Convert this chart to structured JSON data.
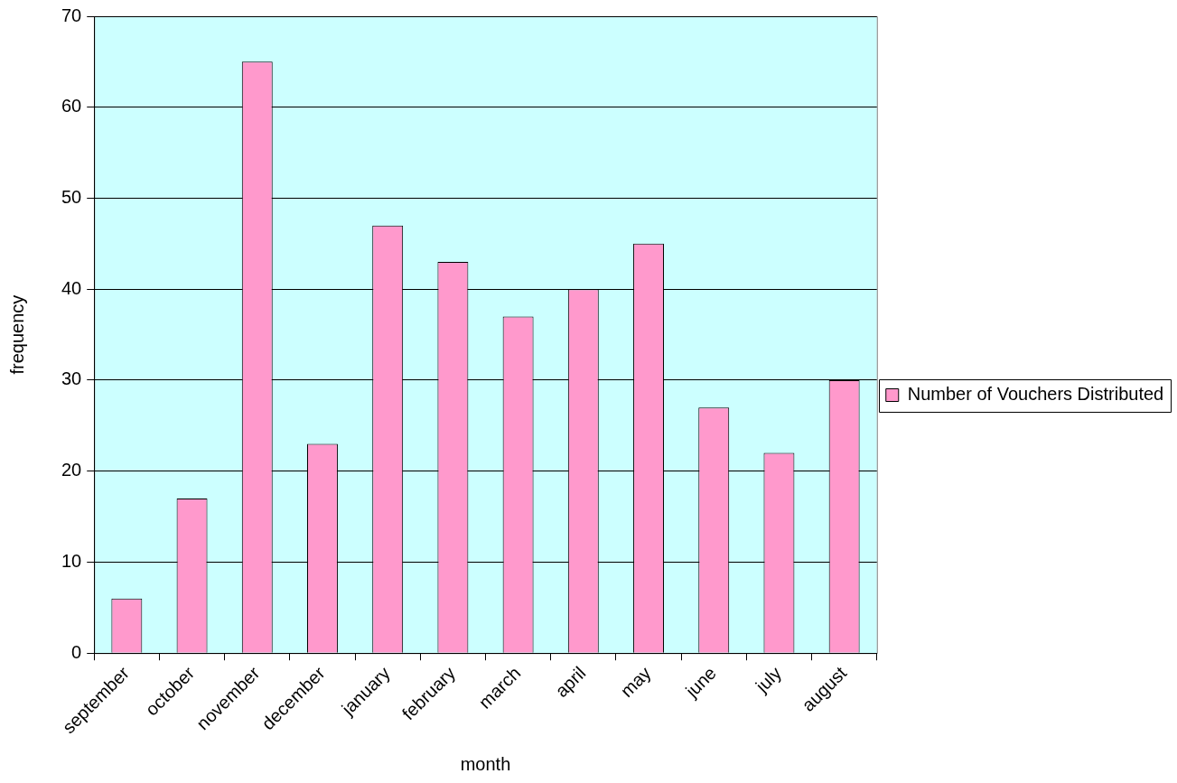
{
  "chart_data": {
    "type": "bar",
    "xlabel": "month",
    "ylabel": "frequency",
    "categories": [
      "september",
      "october",
      "november",
      "december",
      "january",
      "february",
      "march",
      "april",
      "may",
      "june",
      "july",
      "august"
    ],
    "series": [
      {
        "name": "Number of Vouchers Distributed",
        "color": "#ff99cc",
        "values": [
          6,
          17,
          65,
          23,
          47,
          43,
          37,
          40,
          45,
          27,
          22,
          30
        ]
      }
    ],
    "ylim": [
      0,
      70
    ],
    "yticks": [
      0,
      10,
      20,
      30,
      40,
      50,
      60,
      70
    ],
    "grid": "y",
    "legend": "right"
  }
}
